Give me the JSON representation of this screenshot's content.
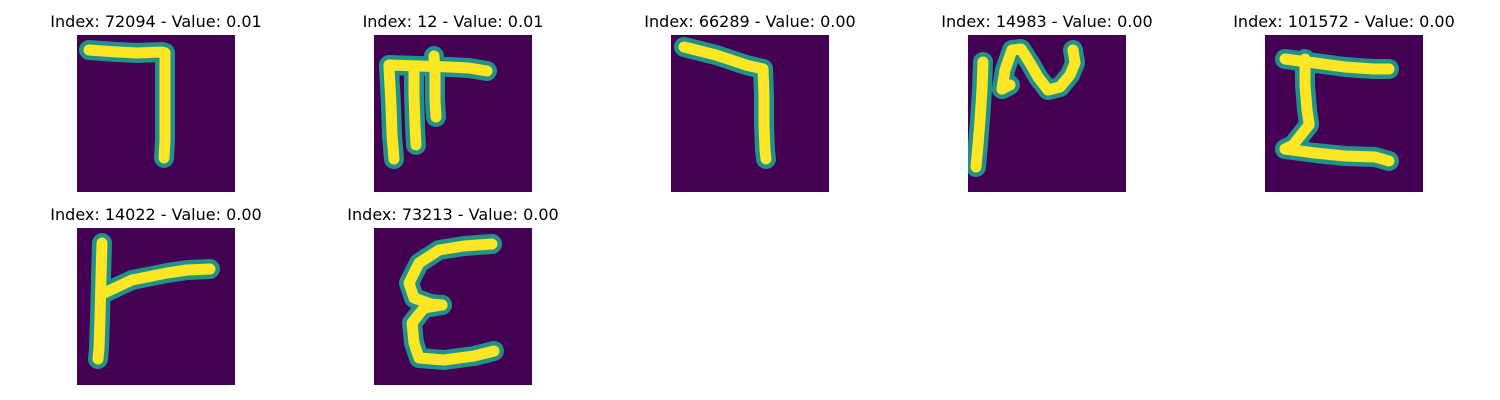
{
  "colors": {
    "background": "#440154",
    "glow": "#21918c",
    "stroke": "#fde725"
  },
  "panels": [
    {
      "title": "Index: 72094 - Value: 0.01",
      "strokes": [
        [
          [
            12,
            15
          ],
          [
            40,
            17
          ],
          [
            60,
            18
          ],
          [
            85,
            17
          ],
          [
            88,
            18
          ]
        ],
        [
          [
            88,
            18
          ],
          [
            88,
            45
          ],
          [
            88,
            80
          ],
          [
            88,
            105
          ],
          [
            87,
            123
          ]
        ]
      ]
    },
    {
      "title": "Index: 12 - Value: 0.01",
      "strokes": [
        [
          [
            15,
            30
          ],
          [
            45,
            31
          ],
          [
            75,
            32
          ],
          [
            95,
            33
          ],
          [
            113,
            36
          ]
        ],
        [
          [
            15,
            32
          ],
          [
            17,
            70
          ],
          [
            18,
            100
          ],
          [
            20,
            124
          ]
        ],
        [
          [
            40,
            31
          ],
          [
            40,
            60
          ],
          [
            41,
            90
          ],
          [
            42,
            110
          ]
        ],
        [
          [
            60,
            21
          ],
          [
            61,
            40
          ],
          [
            61,
            65
          ],
          [
            62,
            82
          ]
        ]
      ]
    },
    {
      "title": "Index: 66289 - Value: 0.00",
      "strokes": [
        [
          [
            13,
            12
          ],
          [
            45,
            20
          ],
          [
            75,
            30
          ],
          [
            92,
            34
          ]
        ],
        [
          [
            92,
            34
          ],
          [
            93,
            60
          ],
          [
            93,
            90
          ],
          [
            94,
            115
          ],
          [
            95,
            124
          ]
        ]
      ]
    },
    {
      "title": "Index: 14983 - Value: 0.00",
      "strokes": [
        [
          [
            15,
            27
          ],
          [
            14,
            55
          ],
          [
            12,
            85
          ],
          [
            10,
            110
          ],
          [
            8,
            132
          ]
        ],
        [
          [
            34,
            54
          ],
          [
            37,
            35
          ],
          [
            44,
            15
          ],
          [
            53,
            14
          ],
          [
            62,
            28
          ],
          [
            70,
            42
          ],
          [
            80,
            55
          ],
          [
            92,
            52
          ],
          [
            102,
            40
          ],
          [
            107,
            28
          ],
          [
            105,
            15
          ]
        ],
        [
          [
            42,
            50
          ],
          [
            34,
            54
          ]
        ]
      ]
    },
    {
      "title": "Index: 101572 - Value: 0.00",
      "strokes": [
        [
          [
            20,
            24
          ],
          [
            50,
            28
          ],
          [
            80,
            32
          ],
          [
            108,
            34
          ],
          [
            124,
            34
          ]
        ],
        [
          [
            40,
            24
          ],
          [
            40,
            50
          ],
          [
            42,
            75
          ],
          [
            44,
            88
          ]
        ],
        [
          [
            44,
            90
          ],
          [
            36,
            100
          ],
          [
            28,
            110
          ],
          [
            20,
            114
          ]
        ],
        [
          [
            20,
            114
          ],
          [
            50,
            118
          ],
          [
            80,
            121
          ],
          [
            110,
            122
          ],
          [
            124,
            126
          ]
        ]
      ]
    },
    {
      "title": "Index: 14022 - Value: 0.00",
      "strokes": [
        [
          [
            25,
            15
          ],
          [
            24,
            50
          ],
          [
            23,
            90
          ],
          [
            22,
            120
          ],
          [
            21,
            131
          ]
        ],
        [
          [
            25,
            66
          ],
          [
            55,
            52
          ],
          [
            90,
            45
          ],
          [
            110,
            42
          ],
          [
            133,
            41
          ]
        ]
      ]
    },
    {
      "title": "Index: 73213 - Value: 0.00",
      "strokes": [
        [
          [
            118,
            16
          ],
          [
            90,
            18
          ],
          [
            65,
            22
          ],
          [
            45,
            35
          ],
          [
            35,
            55
          ],
          [
            40,
            70
          ],
          [
            57,
            76
          ],
          [
            68,
            77
          ]
        ],
        [
          [
            68,
            77
          ],
          [
            50,
            80
          ],
          [
            38,
            95
          ],
          [
            40,
            115
          ],
          [
            45,
            130
          ],
          [
            70,
            132
          ],
          [
            100,
            128
          ],
          [
            120,
            123
          ]
        ]
      ]
    }
  ]
}
